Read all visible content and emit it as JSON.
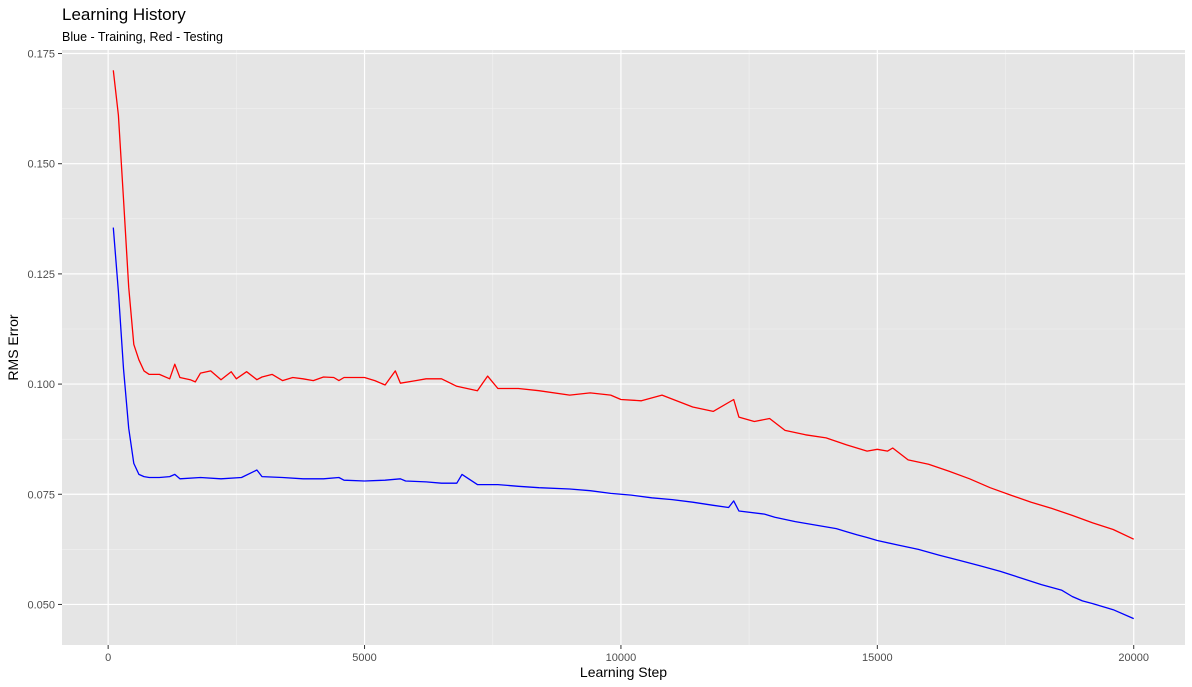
{
  "chart_data": {
    "type": "line",
    "title": "Learning History",
    "subtitle": "Blue - Training, Red - Testing",
    "xlabel": "Learning Step",
    "ylabel": "RMS Error",
    "xlim": [
      -900,
      21000
    ],
    "ylim": [
      0.0408,
      0.1758
    ],
    "xticks": [
      0,
      5000,
      10000,
      15000,
      20000
    ],
    "xtick_labels": [
      "0",
      "5000",
      "10000",
      "15000",
      "20000"
    ],
    "yticks": [
      0.05,
      0.075,
      0.1,
      0.125,
      0.15,
      0.175
    ],
    "ytick_labels": [
      "0.050",
      "0.075",
      "0.100",
      "0.125",
      "0.150",
      "0.175"
    ],
    "grid": true,
    "background": "#e5e5e5",
    "series": [
      {
        "color": "#ff0000",
        "x": [
          100,
          200,
          300,
          400,
          500,
          600,
          700,
          800,
          1000,
          1200,
          1300,
          1400,
          1600,
          1700,
          1800,
          2000,
          2200,
          2400,
          2500,
          2700,
          2900,
          3000,
          3200,
          3400,
          3600,
          3800,
          4000,
          4200,
          4400,
          4500,
          4600,
          5000,
          5200,
          5400,
          5600,
          5700,
          6000,
          6200,
          6500,
          6800,
          7200,
          7400,
          7600,
          8000,
          8400,
          9000,
          9400,
          9800,
          10000,
          10400,
          10800,
          11400,
          11800,
          12200,
          12300,
          12600,
          12900,
          13200,
          13600,
          14000,
          14400,
          14800,
          15000,
          15200,
          15300,
          15600,
          16000,
          16400,
          16800,
          17200,
          17600,
          18000,
          18400,
          18800,
          19200,
          19600,
          20000
        ],
        "values": [
          0.1712,
          0.161,
          0.142,
          0.122,
          0.109,
          0.1055,
          0.103,
          0.1022,
          0.1022,
          0.1012,
          0.1045,
          0.1015,
          0.101,
          0.1005,
          0.1025,
          0.103,
          0.101,
          0.1028,
          0.1012,
          0.1028,
          0.101,
          0.1016,
          0.1022,
          0.1008,
          0.1015,
          0.1012,
          0.1008,
          0.1016,
          0.1015,
          0.1008,
          0.1015,
          0.1015,
          0.1008,
          0.0998,
          0.103,
          0.1002,
          0.1008,
          0.1012,
          0.1012,
          0.0995,
          0.0985,
          0.1018,
          0.099,
          0.099,
          0.0985,
          0.0975,
          0.098,
          0.0975,
          0.0965,
          0.0962,
          0.0975,
          0.0948,
          0.0938,
          0.0965,
          0.0925,
          0.0915,
          0.0922,
          0.0895,
          0.0885,
          0.0878,
          0.0862,
          0.0848,
          0.0852,
          0.0848,
          0.0855,
          0.0828,
          0.0818,
          0.0802,
          0.0785,
          0.0765,
          0.0748,
          0.0732,
          0.0718,
          0.0702,
          0.0685,
          0.067,
          0.0648
        ]
      },
      {
        "color": "#0000ff",
        "x": [
          100,
          200,
          300,
          400,
          500,
          600,
          700,
          800,
          1000,
          1200,
          1300,
          1400,
          1800,
          2200,
          2600,
          2900,
          3000,
          3400,
          3800,
          4200,
          4500,
          4600,
          5000,
          5400,
          5700,
          5800,
          6200,
          6500,
          6800,
          6900,
          7200,
          7600,
          8000,
          8400,
          9000,
          9400,
          9800,
          10200,
          10600,
          11000,
          11400,
          11800,
          12100,
          12200,
          12300,
          12800,
          13000,
          13400,
          13800,
          14200,
          14400,
          14600,
          14800,
          15000,
          15400,
          15800,
          16200,
          16600,
          17000,
          17400,
          17800,
          18200,
          18600,
          18800,
          19000,
          19200,
          19600,
          20000
        ],
        "values": [
          0.1355,
          0.121,
          0.1035,
          0.09,
          0.082,
          0.0795,
          0.079,
          0.0788,
          0.0788,
          0.079,
          0.0795,
          0.0785,
          0.0788,
          0.0785,
          0.0788,
          0.0805,
          0.079,
          0.0788,
          0.0785,
          0.0785,
          0.0788,
          0.0782,
          0.078,
          0.0782,
          0.0785,
          0.078,
          0.0778,
          0.0775,
          0.0775,
          0.0795,
          0.0772,
          0.0772,
          0.0768,
          0.0765,
          0.0762,
          0.0758,
          0.0752,
          0.0748,
          0.0742,
          0.0738,
          0.0732,
          0.0725,
          0.072,
          0.0735,
          0.0712,
          0.0705,
          0.0698,
          0.0688,
          0.068,
          0.0672,
          0.0665,
          0.0658,
          0.0652,
          0.0645,
          0.0635,
          0.0625,
          0.0612,
          0.06,
          0.0588,
          0.0575,
          0.056,
          0.0545,
          0.0532,
          0.0518,
          0.0508,
          0.0502,
          0.0488,
          0.0468
        ]
      }
    ]
  }
}
